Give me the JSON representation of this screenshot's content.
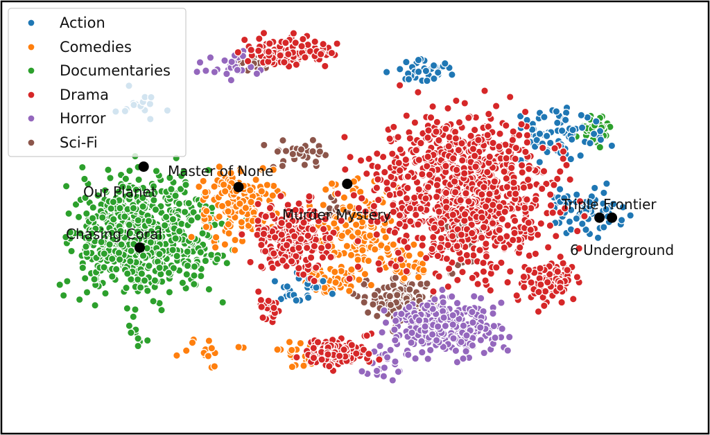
{
  "chart_data": {
    "type": "scatter",
    "title": "",
    "xlabel": "",
    "ylabel": "",
    "xlim": [
      0,
      100
    ],
    "ylim": [
      0,
      62
    ],
    "grid": false,
    "axes_ticks": false,
    "legend_position": "top-left",
    "series": [
      {
        "name": "Action",
        "color": "#1f77b4",
        "clusters": [
          [
            80,
            43,
            6,
            4,
            70
          ],
          [
            85,
            31,
            5,
            3,
            70
          ],
          [
            60,
            53,
            4,
            2,
            35
          ],
          [
            42,
            19,
            4,
            2,
            30
          ],
          [
            17,
            48,
            3,
            2,
            15
          ]
        ]
      },
      {
        "name": "Comedies",
        "color": "#ff7f0e",
        "clusters": [
          [
            32,
            32,
            6,
            5,
            160
          ],
          [
            50,
            28,
            5,
            7,
            150
          ],
          [
            46,
            20,
            4,
            2,
            40
          ],
          [
            42,
            8,
            3,
            2,
            30
          ],
          [
            58,
            23,
            3,
            3,
            40
          ],
          [
            28,
            9,
            6,
            3,
            15
          ]
        ]
      },
      {
        "name": "Documentaries",
        "color": "#2ca02c",
        "clusters": [
          [
            18,
            27,
            10,
            8,
            700
          ],
          [
            86,
            44,
            2,
            2,
            40
          ],
          [
            16,
            12,
            2,
            2,
            10
          ]
        ]
      },
      {
        "name": "Drama",
        "color": "#d62728",
        "clusters": [
          [
            66,
            34,
            12,
            11,
            900
          ],
          [
            40,
            27,
            5,
            5,
            250
          ],
          [
            40,
            56,
            5,
            2,
            110
          ],
          [
            47,
            9,
            4,
            2,
            120
          ],
          [
            79,
            20,
            4,
            3,
            90
          ],
          [
            37,
            16,
            2,
            2,
            25
          ]
        ]
      },
      {
        "name": "Horror",
        "color": "#9467bd",
        "clusters": [
          [
            64,
            13,
            7,
            4,
            280
          ],
          [
            30,
            54,
            5,
            2,
            25
          ],
          [
            54,
            8,
            3,
            3,
            30
          ]
        ]
      },
      {
        "name": "Sci-Fi",
        "color": "#8c564b",
        "clusters": [
          [
            56,
            17,
            5,
            3,
            110
          ],
          [
            41,
            40,
            4,
            2,
            30
          ],
          [
            34,
            54,
            3,
            1,
            20
          ],
          [
            66,
            26,
            4,
            5,
            40
          ],
          [
            47,
            31,
            2,
            2,
            15
          ]
        ]
      }
    ],
    "highlights": [
      {
        "label": "Our Planet",
        "x": 17.6,
        "y": 38.0
      },
      {
        "label": "Master of None",
        "x": 32.0,
        "y": 34.8
      },
      {
        "label": "Murder Mystery",
        "x": 48.5,
        "y": 35.3
      },
      {
        "label": "Chasing Coral",
        "x": 17.0,
        "y": 25.3
      },
      {
        "label": "Triple Frontier",
        "x": 86.8,
        "y": 30.0
      },
      {
        "label": "6 Underground",
        "x": 88.7,
        "y": 30.0
      }
    ]
  }
}
